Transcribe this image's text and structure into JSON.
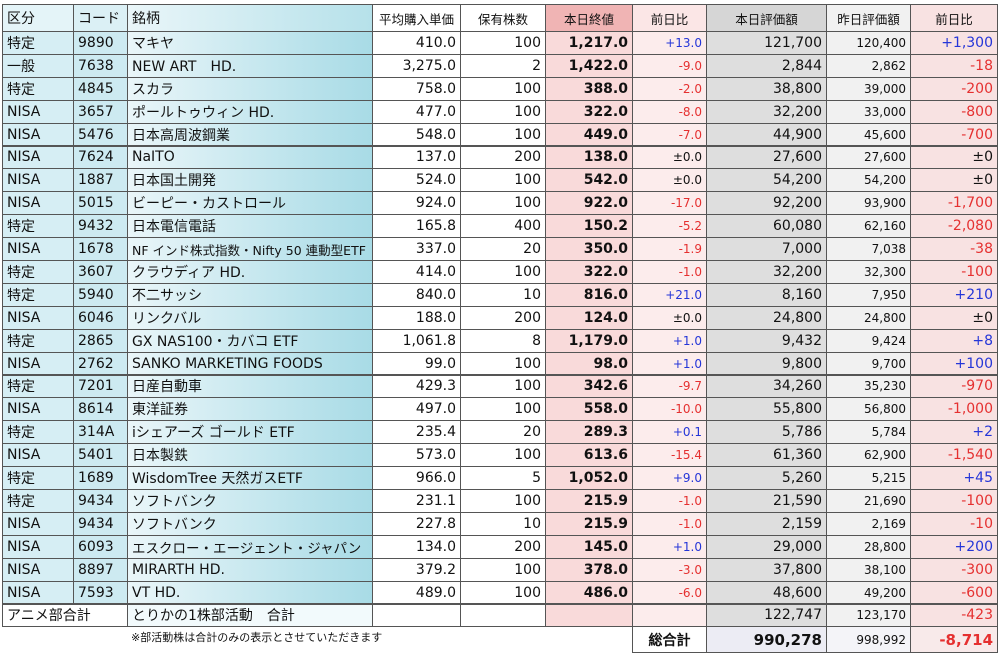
{
  "header": [
    "区分",
    "コード",
    "銘柄",
    "平均購入単価",
    "保有株数",
    "本日終値",
    "前日比",
    "本日評価額",
    "昨日評価額",
    "前日比"
  ],
  "rows": [
    [
      "特定",
      "9890",
      "マキヤ",
      "410.0",
      "100",
      "1,217.0",
      "+13.0",
      "121,700",
      "120,400",
      "+1,300"
    ],
    [
      "一般",
      "7638",
      "NEW ART　HD.",
      "3,275.0",
      "2",
      "1,422.0",
      "-9.0",
      "2,844",
      "2,862",
      "-18"
    ],
    [
      "特定",
      "4845",
      "スカラ",
      "758.0",
      "100",
      "388.0",
      "-2.0",
      "38,800",
      "39,000",
      "-200"
    ],
    [
      "NISA",
      "3657",
      "ポールトゥウィン HD.",
      "477.0",
      "100",
      "322.0",
      "-8.0",
      "32,200",
      "33,000",
      "-800"
    ],
    [
      "NISA",
      "5476",
      "日本高周波鋼業",
      "548.0",
      "100",
      "449.0",
      "-7.0",
      "44,900",
      "45,600",
      "-700"
    ],
    [
      "NISA",
      "7624",
      "NaITO",
      "137.0",
      "200",
      "138.0",
      "±0.0",
      "27,600",
      "27,600",
      "±0"
    ],
    [
      "NISA",
      "1887",
      "日本国土開発",
      "524.0",
      "100",
      "542.0",
      "±0.0",
      "54,200",
      "54,200",
      "±0"
    ],
    [
      "NISA",
      "5015",
      "ビーピー・カストロール",
      "924.0",
      "100",
      "922.0",
      "-17.0",
      "92,200",
      "93,900",
      "-1,700"
    ],
    [
      "特定",
      "9432",
      "日本電信電話",
      "165.8",
      "400",
      "150.2",
      "-5.2",
      "60,080",
      "62,160",
      "-2,080"
    ],
    [
      "NISA",
      "1678",
      "NF インド株式指数・Nifty 50 連動型ETF",
      "337.0",
      "20",
      "350.0",
      "-1.9",
      "7,000",
      "7,038",
      "-38"
    ],
    [
      "特定",
      "3607",
      "クラウディア HD.",
      "414.0",
      "100",
      "322.0",
      "-1.0",
      "32,200",
      "32,300",
      "-100"
    ],
    [
      "特定",
      "5940",
      "不二サッシ",
      "840.0",
      "10",
      "816.0",
      "+21.0",
      "8,160",
      "7,950",
      "+210"
    ],
    [
      "NISA",
      "6046",
      "リンクバル",
      "188.0",
      "200",
      "124.0",
      "±0.0",
      "24,800",
      "24,800",
      "±0"
    ],
    [
      "特定",
      "2865",
      "GX NAS100・カバコ ETF",
      "1,061.8",
      "8",
      "1,179.0",
      "+1.0",
      "9,432",
      "9,424",
      "+8"
    ],
    [
      "NISA",
      "2762",
      "SANKO MARKETING FOODS",
      "99.0",
      "100",
      "98.0",
      "+1.0",
      "9,800",
      "9,700",
      "+100"
    ],
    [
      "特定",
      "7201",
      "日産自動車",
      "429.3",
      "100",
      "342.6",
      "-9.7",
      "34,260",
      "35,230",
      "-970"
    ],
    [
      "NISA",
      "8614",
      "東洋証券",
      "497.0",
      "100",
      "558.0",
      "-10.0",
      "55,800",
      "56,800",
      "-1,000"
    ],
    [
      "特定",
      "314A",
      "iシェアーズ ゴールド ETF",
      "235.4",
      "20",
      "289.3",
      "+0.1",
      "5,786",
      "5,784",
      "+2"
    ],
    [
      "NISA",
      "5401",
      "日本製鉄",
      "573.0",
      "100",
      "613.6",
      "-15.4",
      "61,360",
      "62,900",
      "-1,540"
    ],
    [
      "特定",
      "1689",
      "WisdomTree 天然ガスETF",
      "966.0",
      "5",
      "1,052.0",
      "+9.0",
      "5,260",
      "5,215",
      "+45"
    ],
    [
      "特定",
      "9434",
      "ソフトバンク",
      "231.1",
      "100",
      "215.9",
      "-1.0",
      "21,590",
      "21,690",
      "-100"
    ],
    [
      "NISA",
      "9434",
      "ソフトバンク",
      "227.8",
      "10",
      "215.9",
      "-1.0",
      "2,159",
      "2,169",
      "-10"
    ],
    [
      "NISA",
      "6093",
      "エスクロー・エージェント・ジャパン",
      "134.0",
      "200",
      "145.0",
      "+1.0",
      "29,000",
      "28,800",
      "+200"
    ],
    [
      "NISA",
      "8897",
      "MIRARTH HD.",
      "379.2",
      "100",
      "378.0",
      "-3.0",
      "37,800",
      "38,100",
      "-300"
    ],
    [
      "NISA",
      "7593",
      "VT HD.",
      "489.0",
      "100",
      "486.0",
      "-6.0",
      "48,600",
      "49,200",
      "-600"
    ]
  ],
  "subtotal": {
    "label": "アニメ部合計",
    "name": "とりかの1株部活動　合計",
    "today": "122,747",
    "yesterday": "123,170",
    "change": "-423"
  },
  "footer": {
    "note": "※部活動株は合計のみの表示とさせていただきます",
    "label": "総合計",
    "today": "990,278",
    "yesterday": "998,992",
    "change": "-8,714"
  }
}
